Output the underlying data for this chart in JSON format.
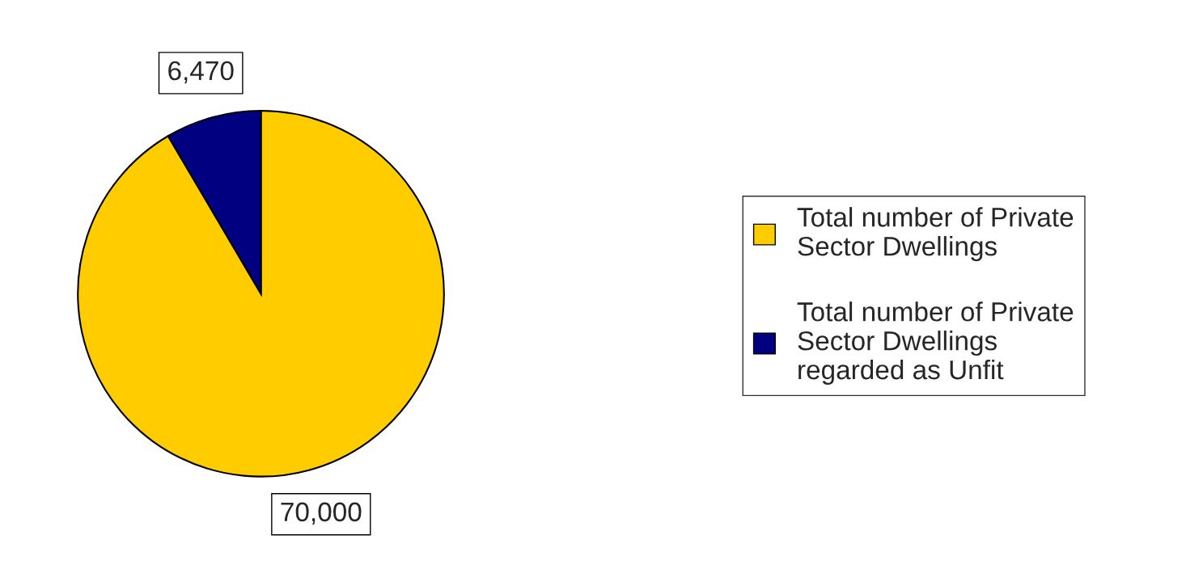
{
  "chart_data": {
    "type": "pie",
    "categories": [
      "Total number of Private Sector Dwellings",
      "Total number of Private Sector Dwellings regarded as Unfit"
    ],
    "values": [
      70000,
      6470
    ],
    "value_labels": [
      "70,000",
      "6,470"
    ],
    "colors": [
      "#ffcc00",
      "#000080"
    ],
    "legend": "right"
  }
}
